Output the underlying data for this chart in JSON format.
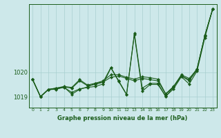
{
  "title": "Graphe pression niveau de la mer (hPa)",
  "background_color": "#cde8ea",
  "line_color": "#1a5c1a",
  "grid_color": "#a8cfd0",
  "xlim": [
    -0.5,
    23.5
  ],
  "ylim": [
    1018.55,
    1022.8
  ],
  "yticks": [
    1019,
    1020
  ],
  "xticks": [
    0,
    1,
    2,
    3,
    4,
    5,
    6,
    7,
    8,
    9,
    10,
    11,
    12,
    13,
    14,
    15,
    16,
    17,
    18,
    19,
    20,
    21,
    22,
    23
  ],
  "series": [
    [
      1019.7,
      1019.0,
      1019.3,
      1019.3,
      1019.4,
      1019.1,
      1019.3,
      1019.4,
      1019.55,
      1019.6,
      1020.2,
      1019.65,
      1019.1,
      1021.6,
      1019.35,
      1019.55,
      1019.55,
      1019.0,
      1019.4,
      1019.85,
      1019.65,
      1020.1,
      1021.5,
      1022.6
    ],
    [
      1019.7,
      1019.0,
      1019.3,
      1019.35,
      1019.4,
      1019.35,
      1019.65,
      1019.45,
      1019.5,
      1019.6,
      1019.8,
      1019.85,
      1019.75,
      1019.65,
      1019.75,
      1019.7,
      1019.65,
      1019.1,
      1019.4,
      1019.85,
      1019.7,
      1020.15,
      1021.5,
      1022.6
    ],
    [
      1019.7,
      1019.0,
      1019.3,
      1019.35,
      1019.42,
      1019.38,
      1019.7,
      1019.48,
      1019.55,
      1019.65,
      1019.9,
      1019.9,
      1019.8,
      1019.72,
      1019.82,
      1019.78,
      1019.72,
      1019.12,
      1019.42,
      1019.9,
      1019.75,
      1020.12,
      1021.52,
      1022.6
    ],
    [
      1019.7,
      1019.0,
      1019.28,
      1019.32,
      1019.38,
      1019.18,
      1019.32,
      1019.38,
      1019.42,
      1019.52,
      1020.18,
      1019.62,
      1019.08,
      1021.55,
      1019.22,
      1019.5,
      1019.5,
      1019.02,
      1019.32,
      1019.82,
      1019.52,
      1020.05,
      1021.42,
      1022.6
    ]
  ],
  "figsize": [
    3.2,
    2.0
  ],
  "dpi": 100
}
